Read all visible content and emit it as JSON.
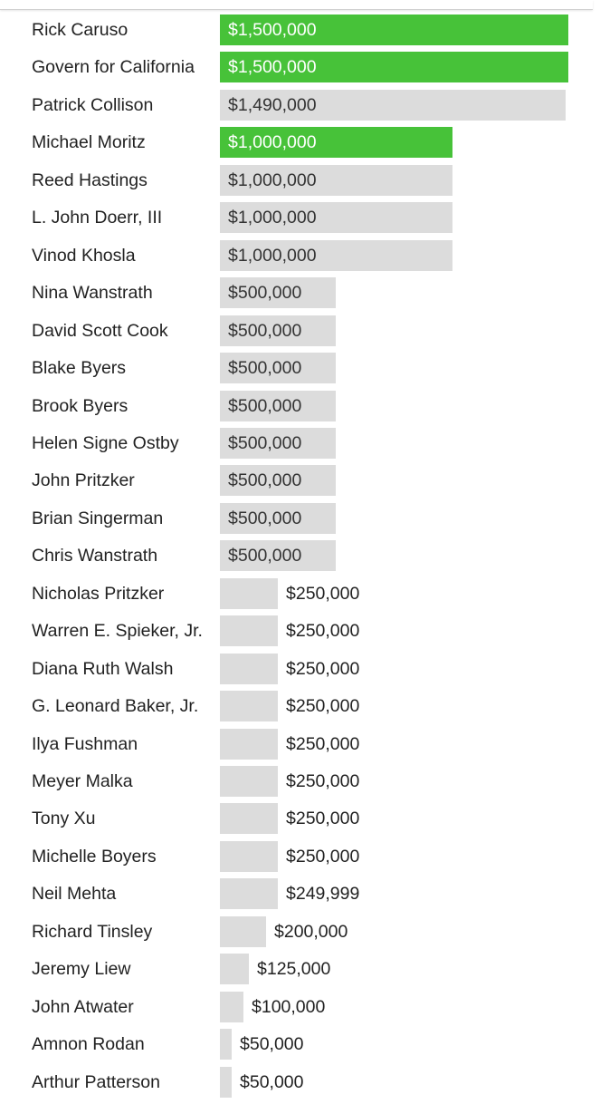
{
  "colors": {
    "highlight": "#47c239",
    "default_bar": "#dcdcdc",
    "text": "#222222",
    "label_inside_highlight": "#ffffff",
    "label_inside_default": "#333333"
  },
  "chart_data": {
    "type": "bar",
    "orientation": "horizontal",
    "title": "",
    "xlabel": "",
    "ylabel": "",
    "xlim": [
      0,
      1500000
    ],
    "grid": false,
    "categories": [
      "Rick Caruso",
      "Govern for California",
      "Patrick Collison",
      "Michael Moritz",
      "Reed Hastings",
      "L. John Doerr, III",
      "Vinod Khosla",
      "Nina Wanstrath",
      "David Scott Cook",
      "Blake Byers",
      "Brook Byers",
      "Helen Signe Ostby",
      "John Pritzker",
      "Brian Singerman",
      "Chris Wanstrath",
      "Nicholas Pritzker",
      "Warren E. Spieker, Jr.",
      "Diana Ruth Walsh",
      "G. Leonard Baker, Jr.",
      "Ilya Fushman",
      "Meyer Malka",
      "Tony Xu",
      "Michelle Boyers",
      "Neil Mehta",
      "Richard Tinsley",
      "Jeremy Liew",
      "John Atwater",
      "Amnon Rodan",
      "Arthur Patterson"
    ],
    "values": [
      1500000,
      1500000,
      1490000,
      1000000,
      1000000,
      1000000,
      1000000,
      500000,
      500000,
      500000,
      500000,
      500000,
      500000,
      500000,
      500000,
      250000,
      250000,
      250000,
      250000,
      250000,
      250000,
      250000,
      250000,
      249999,
      200000,
      125000,
      100000,
      50000,
      50000
    ],
    "value_labels": [
      "$1,500,000",
      "$1,500,000",
      "$1,490,000",
      "$1,000,000",
      "$1,000,000",
      "$1,000,000",
      "$1,000,000",
      "$500,000",
      "$500,000",
      "$500,000",
      "$500,000",
      "$500,000",
      "$500,000",
      "$500,000",
      "$500,000",
      "$250,000",
      "$250,000",
      "$250,000",
      "$250,000",
      "$250,000",
      "$250,000",
      "$250,000",
      "$250,000",
      "$249,999",
      "$200,000",
      "$125,000",
      "$100,000",
      "$50,000",
      "$50,000"
    ],
    "highlighted": [
      true,
      true,
      false,
      true,
      false,
      false,
      false,
      false,
      false,
      false,
      false,
      false,
      false,
      false,
      false,
      false,
      false,
      false,
      false,
      false,
      false,
      false,
      false,
      false,
      false,
      false,
      false,
      false,
      false
    ]
  }
}
